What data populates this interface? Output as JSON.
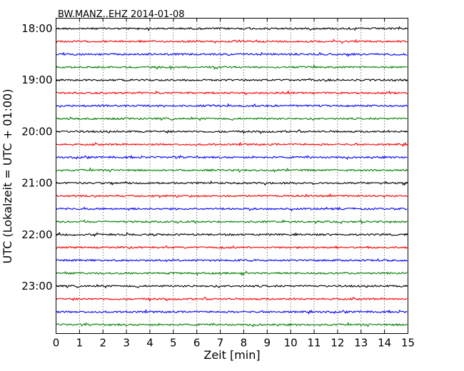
{
  "chart_data": {
    "type": "line",
    "title": "BW.MANZ..EHZ 2014-01-08",
    "xlabel": "Zeit  [min]",
    "ylabel": "UTC (Lokalzeit = UTC + 01:00)",
    "xlim": [
      0,
      15
    ],
    "x_ticks": [
      "0",
      "1",
      "2",
      "3",
      "4",
      "5",
      "6",
      "7",
      "8",
      "9",
      "10",
      "11",
      "12",
      "13",
      "14",
      "15"
    ],
    "y_ticks": [
      "18:00",
      "19:00",
      "20:00",
      "21:00",
      "22:00",
      "23:00"
    ],
    "grid": "vertical dotted",
    "trace_colors": [
      "#000000",
      "#ff0000",
      "#0000ff",
      "#008000"
    ],
    "traces_per_hour": 4,
    "trace_count": 24
  }
}
